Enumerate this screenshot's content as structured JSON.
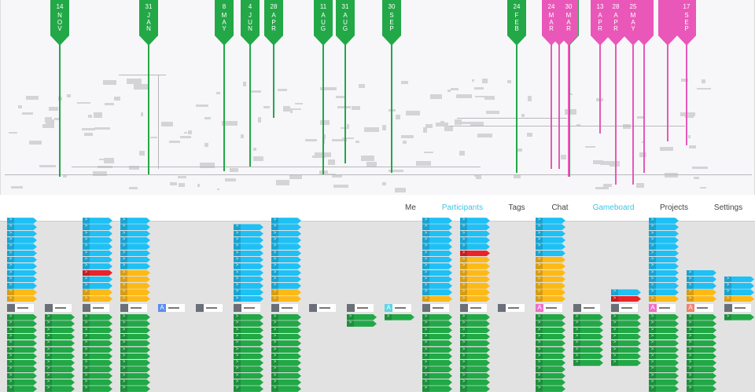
{
  "colors": {
    "green": "#22a847",
    "pink": "#e957b9",
    "blue": "#1ec0f5",
    "orange": "#fdb916",
    "red": "#e8242a",
    "nav_active": "#3ec5e6"
  },
  "timeline": {
    "markers": [
      {
        "day": "14",
        "month": "NOV",
        "color": "green"
      },
      {
        "day": "31",
        "month": "JAN",
        "color": "green"
      },
      {
        "day": "8",
        "month": "MAY",
        "color": "green"
      },
      {
        "day": "4",
        "month": "JUN",
        "color": "green"
      },
      {
        "day": "28",
        "month": "APR",
        "color": "green"
      },
      {
        "day": "11",
        "month": "AUG",
        "color": "green"
      },
      {
        "day": "31",
        "month": "AUG",
        "color": "green"
      },
      {
        "day": "30",
        "month": "SEP",
        "color": "green"
      },
      {
        "day": "24",
        "month": "FEB",
        "color": "green"
      },
      {
        "day": "24",
        "month": "MAR",
        "color": "pink"
      },
      {
        "day": "",
        "month": "",
        "color": "pink"
      },
      {
        "day": "30",
        "month": "MAR",
        "color": "pink"
      },
      {
        "day": "",
        "month": "",
        "color": "green"
      },
      {
        "day": "13",
        "month": "APR",
        "color": "pink"
      },
      {
        "day": "28",
        "month": "APR",
        "color": "pink"
      },
      {
        "day": "25",
        "month": "MAY",
        "color": "pink"
      },
      {
        "day": "",
        "month": "",
        "color": "pink"
      },
      {
        "day": "",
        "month": "",
        "color": "pink"
      },
      {
        "day": "17",
        "month": "SEP",
        "color": "pink"
      }
    ]
  },
  "nav": {
    "items": [
      {
        "label": "Me",
        "active": false
      },
      {
        "label": "Participants",
        "active": true
      },
      {
        "label": "Tags",
        "active": false
      },
      {
        "label": "Chat",
        "active": false
      },
      {
        "label": "Gameboard",
        "active": true
      },
      {
        "label": "Projects",
        "active": false
      },
      {
        "label": "Settings",
        "active": false
      }
    ]
  },
  "card_glyph": ">",
  "gameboard": {
    "columns": [
      {
        "above": [
          "blue",
          "blue",
          "blue",
          "blue",
          "blue",
          "blue",
          "blue",
          "blue",
          "blue",
          "blue",
          "blue",
          "orange",
          "orange"
        ],
        "avatar": "photo",
        "below": 12
      },
      {
        "above": [],
        "avatar": "photo",
        "below": 12
      },
      {
        "above": [
          "blue",
          "blue",
          "blue",
          "blue",
          "blue",
          "blue",
          "blue",
          "blue",
          "red",
          "blue",
          "blue",
          "orange",
          "orange"
        ],
        "avatar": "photo",
        "below": 12
      },
      {
        "above": [
          "blue",
          "blue",
          "blue",
          "blue",
          "blue",
          "blue",
          "blue",
          "blue",
          "orange",
          "orange",
          "orange",
          "orange",
          "orange"
        ],
        "avatar": "photo",
        "below": 12
      },
      {
        "above": [],
        "avatar": "A",
        "avatar_color": "#5b8def",
        "below": 0
      },
      {
        "above": [],
        "avatar": "photo",
        "below": 0
      },
      {
        "above": [
          "blue",
          "blue",
          "blue",
          "blue",
          "blue",
          "blue",
          "blue",
          "blue",
          "blue",
          "blue",
          "blue",
          "blue"
        ],
        "avatar": "photo",
        "below": 12
      },
      {
        "above": [
          "blue",
          "blue",
          "blue",
          "blue",
          "blue",
          "blue",
          "blue",
          "blue",
          "blue",
          "blue",
          "blue",
          "orange",
          "orange"
        ],
        "avatar": "photo",
        "below": 12
      },
      {
        "above": [],
        "avatar": "photo",
        "below": 0
      },
      {
        "above": [],
        "avatar": "photo",
        "below": 2
      },
      {
        "above": [],
        "avatar": "A",
        "avatar_color": "#5fd4e6",
        "below": 1
      },
      {
        "above": [
          "blue",
          "blue",
          "blue",
          "blue",
          "blue",
          "blue",
          "blue",
          "blue",
          "blue",
          "blue",
          "blue",
          "blue",
          "orange"
        ],
        "avatar": "photo",
        "below": 12
      },
      {
        "above": [
          "blue",
          "blue",
          "blue",
          "blue",
          "blue",
          "red",
          "orange",
          "orange",
          "orange",
          "orange",
          "orange",
          "orange",
          "orange"
        ],
        "avatar": "photo",
        "below": 12
      },
      {
        "above": [],
        "avatar": "photo",
        "below": 0
      },
      {
        "above": [
          "blue",
          "blue",
          "blue",
          "blue",
          "blue",
          "blue",
          "orange",
          "orange",
          "orange",
          "orange",
          "orange",
          "orange",
          "orange"
        ],
        "avatar": "A",
        "avatar_color": "#ee6fc8",
        "below": 12
      },
      {
        "above": [],
        "avatar": "photo",
        "below": 8
      },
      {
        "above": [
          "blue",
          "red"
        ],
        "avatar": "photo",
        "below": 8
      },
      {
        "above": [
          "blue",
          "blue",
          "blue",
          "blue",
          "blue",
          "blue",
          "blue",
          "blue",
          "blue",
          "blue",
          "blue",
          "blue",
          "orange"
        ],
        "avatar": "A",
        "avatar_color": "#ee6fc8",
        "below": 12
      },
      {
        "above": [
          "blue",
          "blue",
          "blue",
          "orange",
          "orange"
        ],
        "avatar": "A",
        "avatar_color": "#f08070",
        "below": 12
      },
      {
        "above": [
          "blue",
          "blue",
          "blue",
          "orange"
        ],
        "avatar": "photo",
        "below": 1
      }
    ]
  }
}
